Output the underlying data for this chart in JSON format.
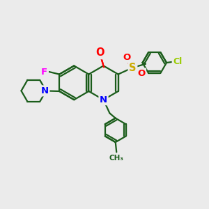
{
  "background_color": "#ebebeb",
  "atom_colors": {
    "O": "#ff0000",
    "N": "#0000ff",
    "F": "#ff00ff",
    "S": "#ccaa00",
    "Cl": "#99cc00",
    "C": "#1a5c1a",
    "bond": "#1a5c1a"
  },
  "bond_width": 1.6,
  "font_size": 9.5,
  "xlim": [
    0,
    10
  ],
  "ylim": [
    0,
    10
  ]
}
